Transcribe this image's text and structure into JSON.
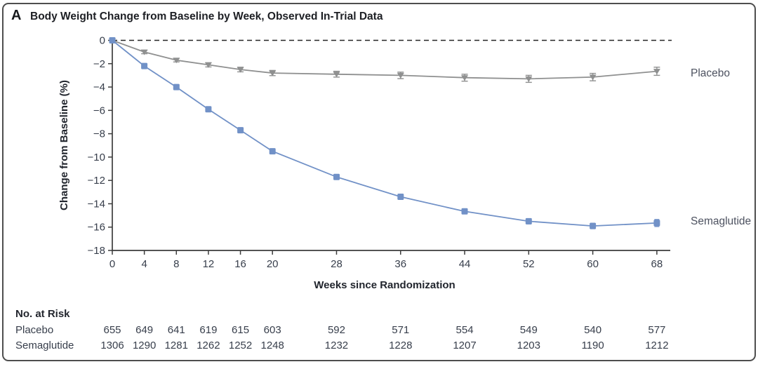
{
  "figure": {
    "panel_label": "A",
    "title": "Body Weight Change from Baseline by Week, Observed In-Trial Data"
  },
  "chart_data": {
    "type": "line",
    "x": [
      0,
      4,
      8,
      12,
      16,
      20,
      28,
      36,
      44,
      52,
      60,
      68
    ],
    "xticks": [
      0,
      4,
      8,
      12,
      16,
      20,
      28,
      36,
      44,
      52,
      60,
      68
    ],
    "series": [
      {
        "name": "Placebo",
        "marker": "triangle-down",
        "color": "#8f9090",
        "values": [
          0,
          -1.0,
          -1.7,
          -2.1,
          -2.5,
          -2.8,
          -2.9,
          -3.0,
          -3.2,
          -3.3,
          -3.15,
          -2.65
        ],
        "errors": [
          0,
          0.15,
          0.15,
          0.18,
          0.2,
          0.22,
          0.25,
          0.28,
          0.3,
          0.3,
          0.32,
          0.35
        ]
      },
      {
        "name": "Semaglutide",
        "marker": "square",
        "color": "#7191c7",
        "values": [
          0,
          -2.2,
          -4.0,
          -5.9,
          -7.7,
          -9.5,
          -11.7,
          -13.4,
          -14.65,
          -15.5,
          -15.9,
          -15.65
        ],
        "errors": [
          0,
          0.12,
          0.12,
          0.13,
          0.14,
          0.15,
          0.17,
          0.18,
          0.2,
          0.22,
          0.23,
          0.3
        ]
      }
    ],
    "xlabel": "Weeks since Randomization",
    "ylabel": "Change from Baseline (%)",
    "ylim": [
      -18,
      0
    ],
    "ytick_step": 2,
    "grid": false,
    "zero_reference_line": "dashed-black",
    "legend_position": "right-of-line-ends"
  },
  "risk_table": {
    "header": "No. at Risk",
    "rows": [
      {
        "label": "Placebo",
        "values": [
          655,
          649,
          641,
          619,
          615,
          603,
          592,
          571,
          554,
          549,
          540,
          577
        ]
      },
      {
        "label": "Semaglutide",
        "values": [
          1306,
          1290,
          1281,
          1262,
          1252,
          1248,
          1232,
          1228,
          1207,
          1203,
          1190,
          1212
        ]
      }
    ]
  },
  "colors": {
    "semaglutide_blue": "#7191c7",
    "placebo_gray": "#8f9090",
    "axis": "#3c3c3c",
    "text_dark": "#1d1f24",
    "tick_text": "#373e4b",
    "figure_border": "#4e4e4e"
  }
}
